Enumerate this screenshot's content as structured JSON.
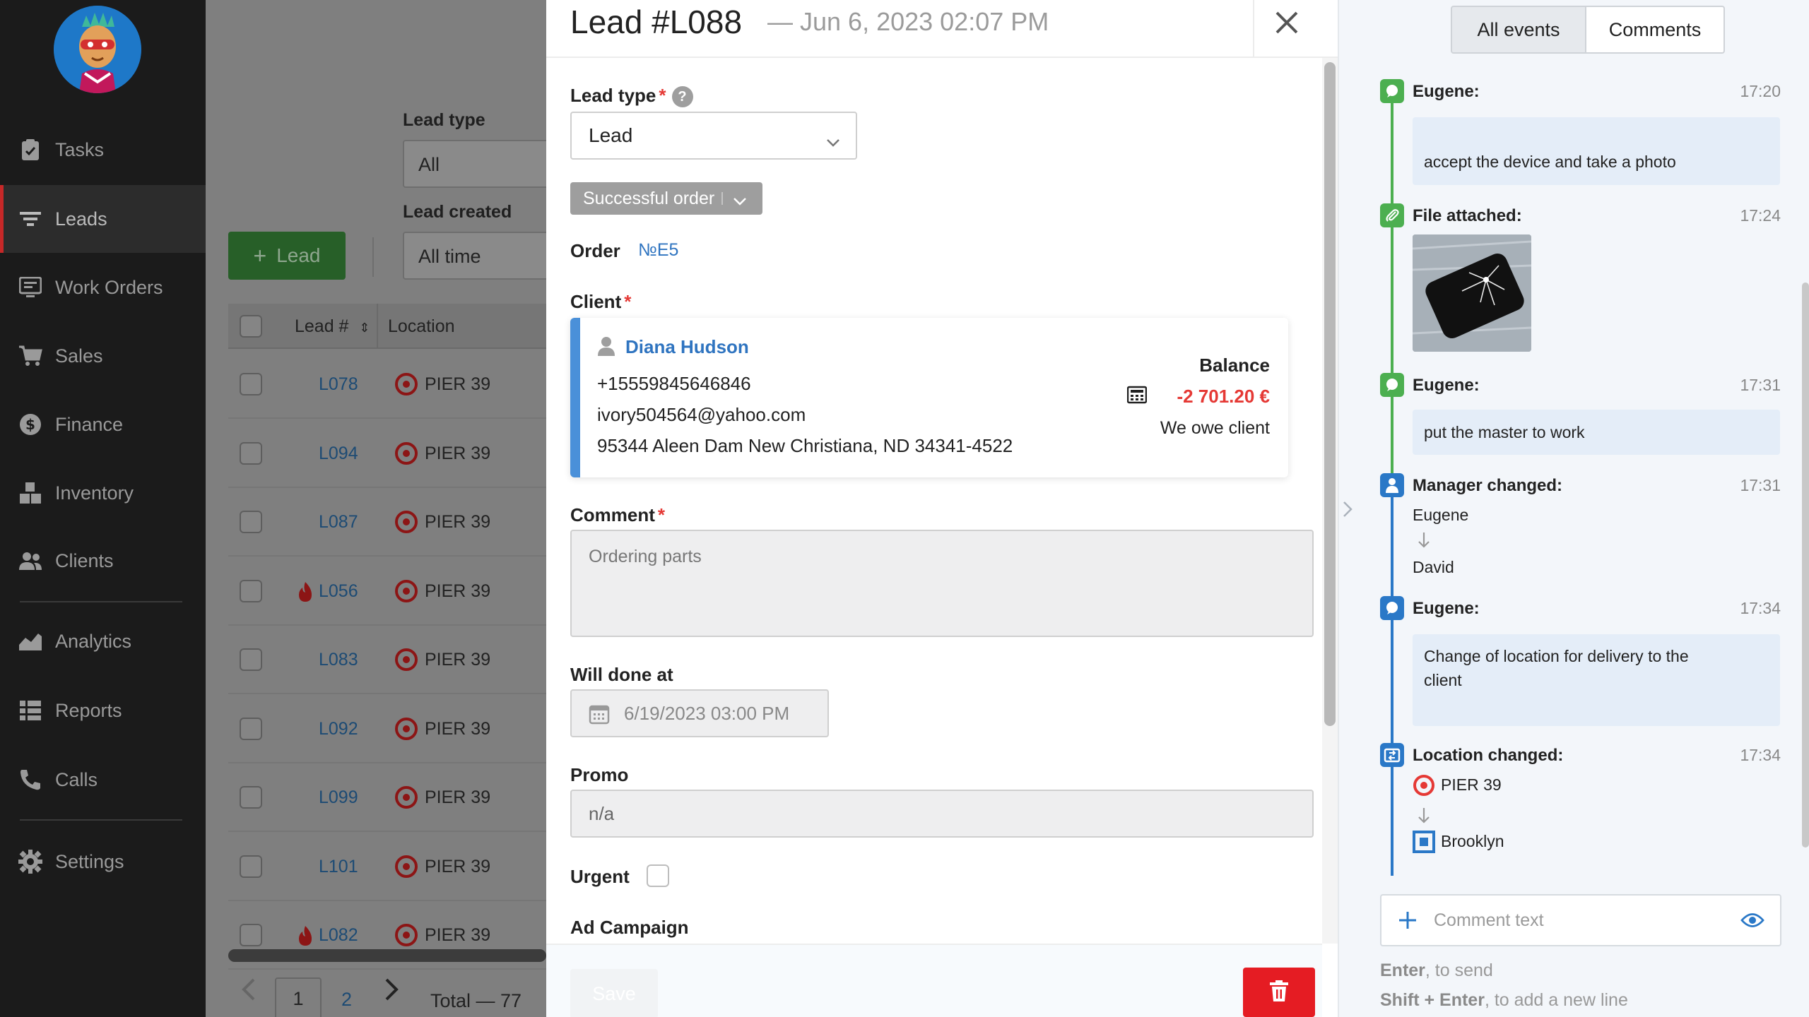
{
  "sidebar": {
    "items": [
      {
        "label": "Tasks",
        "icon": "clipboard-icon"
      },
      {
        "label": "Leads",
        "icon": "filter-icon",
        "active": true
      },
      {
        "label": "Work Orders",
        "icon": "monitor-icon"
      },
      {
        "label": "Sales",
        "icon": "cart-icon"
      },
      {
        "label": "Finance",
        "icon": "dollar-icon"
      },
      {
        "label": "Inventory",
        "icon": "boxes-icon"
      },
      {
        "label": "Clients",
        "icon": "users-icon"
      },
      {
        "label": "Analytics",
        "icon": "chart-icon"
      },
      {
        "label": "Reports",
        "icon": "list-icon"
      },
      {
        "label": "Calls",
        "icon": "phone-icon"
      },
      {
        "label": "Settings",
        "icon": "gear-icon"
      }
    ]
  },
  "list": {
    "filters": {
      "lead_type_label": "Lead type",
      "lead_type_value": "All",
      "lead_created_label": "Lead created",
      "lead_created_value": "All time"
    },
    "add_button": "Lead",
    "columns": {
      "lead_no": "Lead #",
      "location": "Location"
    },
    "rows": [
      {
        "id": "L078",
        "location": "PIER 39",
        "hot": false
      },
      {
        "id": "L094",
        "location": "PIER 39",
        "hot": false
      },
      {
        "id": "L087",
        "location": "PIER 39",
        "hot": false
      },
      {
        "id": "L056",
        "location": "PIER 39",
        "hot": true
      },
      {
        "id": "L083",
        "location": "PIER 39",
        "hot": false
      },
      {
        "id": "L092",
        "location": "PIER 39",
        "hot": false
      },
      {
        "id": "L099",
        "location": "PIER 39",
        "hot": false
      },
      {
        "id": "L101",
        "location": "PIER 39",
        "hot": false
      },
      {
        "id": "L082",
        "location": "PIER 39",
        "hot": true
      }
    ],
    "pagination": {
      "page1": "1",
      "page2": "2",
      "total": "Total — 77"
    }
  },
  "modal": {
    "title": "Lead #L088",
    "subtitle": "— Jun 6, 2023 02:07 PM",
    "lead_type_label": "Lead type",
    "lead_type_value": "Lead",
    "status": "Successful order",
    "order_label": "Order",
    "order_value": "№E5",
    "client_label": "Client",
    "client": {
      "name": "Diana Hudson",
      "phone": "+15559845646846",
      "email": "ivory504564@yahoo.com",
      "address": "95344 Aleen Dam New Christiana, ND 34341-4522",
      "balance_label": "Balance",
      "balance_amount": "-2 701.20 €",
      "balance_note": "We owe client"
    },
    "comment_label": "Comment",
    "comment_value": "Ordering parts",
    "will_done_label": "Will done at",
    "will_done_value": "6/19/2023 03:00 PM",
    "promo_label": "Promo",
    "promo_value": "n/a",
    "urgent_label": "Urgent",
    "ad_campaign_label": "Ad Campaign",
    "save_label": "Save"
  },
  "events": {
    "tabs": {
      "all": "All events",
      "comments": "Comments"
    },
    "items": [
      {
        "title": "Eugene:",
        "time": "17:20",
        "text": "accept the device and take a photo"
      },
      {
        "title": "File attached:",
        "time": "17:24"
      },
      {
        "title": "Eugene:",
        "time": "17:31",
        "text": "put the master to work"
      },
      {
        "title": "Manager changed:",
        "time": "17:31",
        "from": "Eugene",
        "to": "David"
      },
      {
        "title": "Eugene:",
        "time": "17:34",
        "text_line1": "Change of location for delivery to the",
        "text_line2": "client"
      },
      {
        "title": "Location changed:",
        "time": "17:34",
        "from": "PIER 39",
        "to": "Brooklyn"
      }
    ],
    "comment_placeholder": "Comment text",
    "hint_send_key": "Enter",
    "hint_send_text": ", to send",
    "hint_newline_key": "Shift + Enter",
    "hint_newline_text": ", to add a new line"
  },
  "colors": {
    "accent_blue": "#2f74c0",
    "danger": "#e53935",
    "success": "#4caf50",
    "sidebar_bg": "#1b1b1b"
  }
}
